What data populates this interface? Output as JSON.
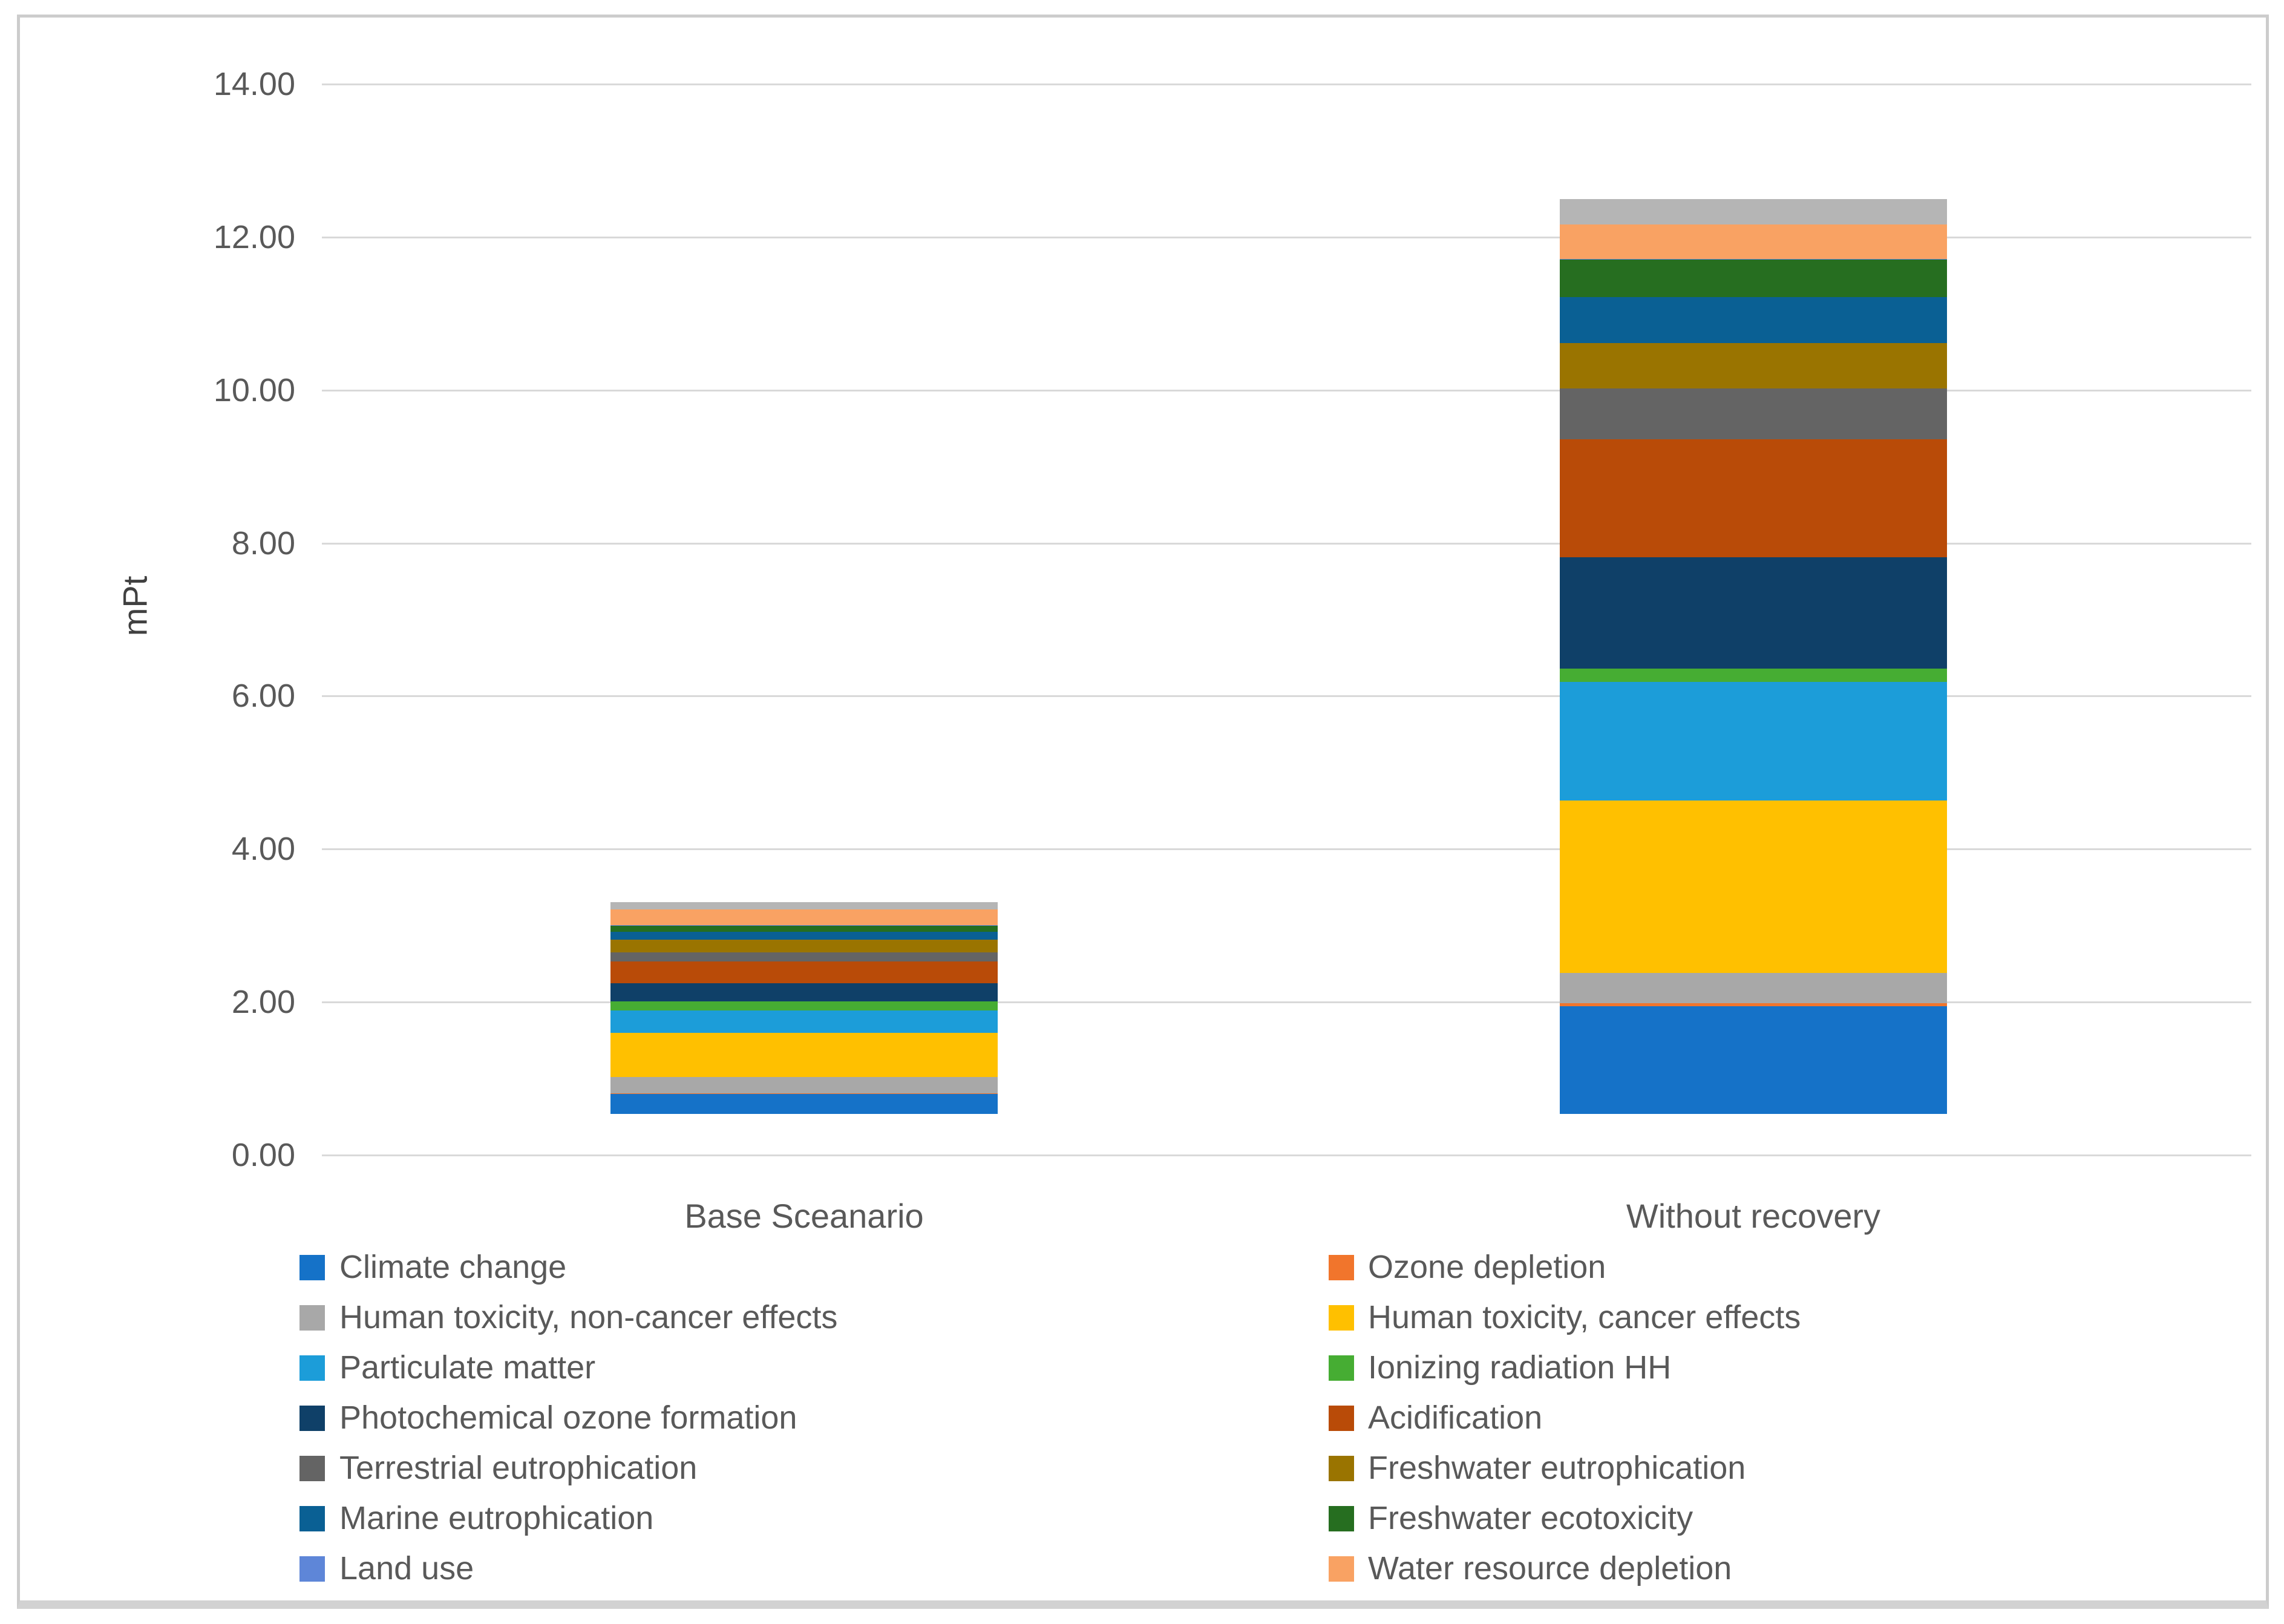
{
  "figure": {
    "background": "#ffffff",
    "border_color": "#cccccc",
    "text_color": "#595959",
    "gridline_color": "#d9d9d9"
  },
  "chart_data": {
    "type": "bar",
    "stacked": true,
    "title": "",
    "xlabel": "",
    "ylabel": "mPt",
    "ylim": [
      0,
      14
    ],
    "grid": true,
    "yticks": [
      14,
      12,
      10,
      8,
      6,
      4,
      2,
      0
    ],
    "ytick_labels": [
      "14.00",
      "12.00",
      "10.00",
      "8.00",
      "6.00",
      "4.00",
      "2.00",
      "0.00"
    ],
    "categories": [
      "Base Sceanario",
      "Without recovery"
    ],
    "series": [
      {
        "name": "Climate change",
        "color": "#1572C8",
        "values": [
          0.26,
          1.41
        ],
        "in_legend": true
      },
      {
        "name": "Ozone depletion",
        "color": "#F1752C",
        "values": [
          0.01,
          0.04
        ],
        "in_legend": true
      },
      {
        "name": "Human toxicity, non-cancer effects",
        "color": "#A8A8A8",
        "values": [
          0.21,
          0.39
        ],
        "in_legend": true
      },
      {
        "name": "Human toxicity, cancer effects",
        "color": "#FFC000",
        "values": [
          0.58,
          2.26
        ],
        "in_legend": true
      },
      {
        "name": "Particulate matter",
        "color": "#1C9DD9",
        "values": [
          0.29,
          1.55
        ],
        "in_legend": true
      },
      {
        "name": "Ionizing radiation HH",
        "color": "#46AD33",
        "values": [
          0.12,
          0.17
        ],
        "in_legend": true
      },
      {
        "name": "Photochemical ozone formation",
        "color": "#0F4068",
        "values": [
          0.24,
          1.46
        ],
        "in_legend": true
      },
      {
        "name": "Acidification",
        "color": "#B94B08",
        "values": [
          0.28,
          1.54
        ],
        "in_legend": true
      },
      {
        "name": "Terrestrial eutrophication",
        "color": "#646464",
        "values": [
          0.12,
          0.66
        ],
        "in_legend": true
      },
      {
        "name": "Freshwater eutrophication",
        "color": "#9A7400",
        "values": [
          0.17,
          0.6
        ],
        "in_legend": true
      },
      {
        "name": "Marine eutrophication",
        "color": "#0A6094",
        "values": [
          0.1,
          0.6
        ],
        "in_legend": true
      },
      {
        "name": "Freshwater ecotoxicity",
        "color": "#266E20",
        "values": [
          0.08,
          0.49
        ],
        "in_legend": true
      },
      {
        "name": "Land use",
        "color": "#5E86D8",
        "values": [
          0.01,
          0.01
        ],
        "in_legend": true
      },
      {
        "name": "Water resource depletion",
        "color": "#F9A263",
        "values": [
          0.2,
          0.45
        ],
        "in_legend": true
      },
      {
        "name": "",
        "color": "#B5B5B5",
        "values": [
          0.1,
          0.33
        ],
        "in_legend": false
      }
    ],
    "legend_position": "bottom",
    "legend_columns": [
      [
        "Climate change",
        "Human toxicity, non-cancer effects",
        "Particulate matter",
        "Photochemical ozone formation",
        "Terrestrial eutrophication",
        "Marine eutrophication",
        "Land use"
      ],
      [
        "Ozone depletion",
        "Human toxicity, cancer effects",
        "Ionizing radiation HH",
        "Acidification",
        "Freshwater eutrophication",
        "Freshwater ecotoxicity",
        "Water resource depletion"
      ]
    ]
  }
}
